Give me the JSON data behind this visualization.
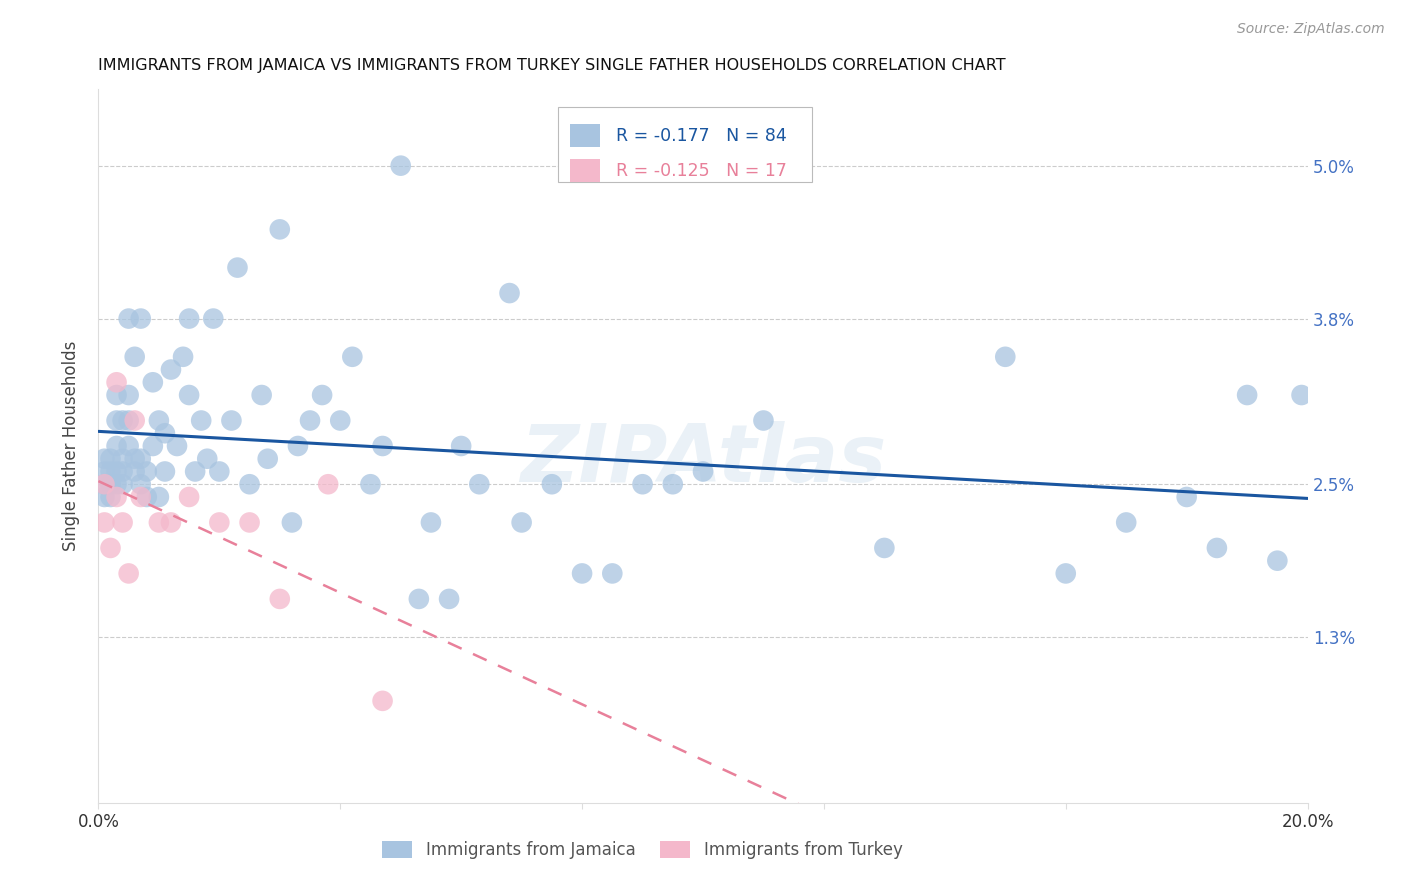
{
  "title": "IMMIGRANTS FROM JAMAICA VS IMMIGRANTS FROM TURKEY SINGLE FATHER HOUSEHOLDS CORRELATION CHART",
  "source": "Source: ZipAtlas.com",
  "ylabel": "Single Father Households",
  "xlim": [
    0.0,
    0.2
  ],
  "ylim": [
    0.0,
    0.056
  ],
  "yticks": [
    0.013,
    0.025,
    0.038,
    0.05
  ],
  "ytick_labels": [
    "1.3%",
    "2.5%",
    "3.8%",
    "5.0%"
  ],
  "xticks": [
    0.0,
    0.04,
    0.08,
    0.12,
    0.16,
    0.2
  ],
  "xtick_labels": [
    "0.0%",
    "",
    "",
    "",
    "",
    "20.0%"
  ],
  "jamaica_color": "#a8c4e0",
  "turkey_color": "#f4b8cb",
  "jamaica_line_color": "#1a56a0",
  "turkey_line_color": "#e8809a",
  "jamaica_R": -0.177,
  "jamaica_N": 84,
  "turkey_R": -0.125,
  "turkey_N": 17,
  "watermark": "ZIPAtlas",
  "jamaica_label": "Immigrants from Jamaica",
  "turkey_label": "Immigrants from Turkey",
  "jamaica_x": [
    0.001,
    0.001,
    0.001,
    0.001,
    0.002,
    0.002,
    0.002,
    0.002,
    0.002,
    0.003,
    0.003,
    0.003,
    0.003,
    0.003,
    0.004,
    0.004,
    0.004,
    0.004,
    0.005,
    0.005,
    0.005,
    0.005,
    0.006,
    0.006,
    0.006,
    0.007,
    0.007,
    0.007,
    0.008,
    0.008,
    0.009,
    0.009,
    0.01,
    0.01,
    0.011,
    0.011,
    0.012,
    0.013,
    0.014,
    0.015,
    0.015,
    0.016,
    0.017,
    0.018,
    0.019,
    0.02,
    0.022,
    0.023,
    0.025,
    0.027,
    0.028,
    0.03,
    0.032,
    0.033,
    0.035,
    0.037,
    0.04,
    0.042,
    0.045,
    0.047,
    0.05,
    0.053,
    0.055,
    0.058,
    0.06,
    0.063,
    0.068,
    0.07,
    0.075,
    0.08,
    0.085,
    0.09,
    0.095,
    0.1,
    0.11,
    0.13,
    0.15,
    0.16,
    0.17,
    0.18,
    0.185,
    0.19,
    0.195,
    0.199
  ],
  "jamaica_y": [
    0.025,
    0.026,
    0.024,
    0.027,
    0.025,
    0.026,
    0.024,
    0.025,
    0.027,
    0.026,
    0.025,
    0.028,
    0.03,
    0.032,
    0.025,
    0.027,
    0.026,
    0.03,
    0.028,
    0.03,
    0.032,
    0.038,
    0.026,
    0.027,
    0.035,
    0.025,
    0.027,
    0.038,
    0.024,
    0.026,
    0.028,
    0.033,
    0.024,
    0.03,
    0.026,
    0.029,
    0.034,
    0.028,
    0.035,
    0.032,
    0.038,
    0.026,
    0.03,
    0.027,
    0.038,
    0.026,
    0.03,
    0.042,
    0.025,
    0.032,
    0.027,
    0.045,
    0.022,
    0.028,
    0.03,
    0.032,
    0.03,
    0.035,
    0.025,
    0.028,
    0.05,
    0.016,
    0.022,
    0.016,
    0.028,
    0.025,
    0.04,
    0.022,
    0.025,
    0.018,
    0.018,
    0.025,
    0.025,
    0.026,
    0.03,
    0.02,
    0.035,
    0.018,
    0.022,
    0.024,
    0.02,
    0.032,
    0.019,
    0.032
  ],
  "turkey_x": [
    0.001,
    0.001,
    0.002,
    0.003,
    0.003,
    0.004,
    0.005,
    0.006,
    0.007,
    0.01,
    0.012,
    0.015,
    0.02,
    0.025,
    0.03,
    0.038,
    0.047
  ],
  "turkey_y": [
    0.025,
    0.022,
    0.02,
    0.033,
    0.024,
    0.022,
    0.018,
    0.03,
    0.024,
    0.022,
    0.022,
    0.024,
    0.022,
    0.022,
    0.016,
    0.025,
    0.008
  ]
}
